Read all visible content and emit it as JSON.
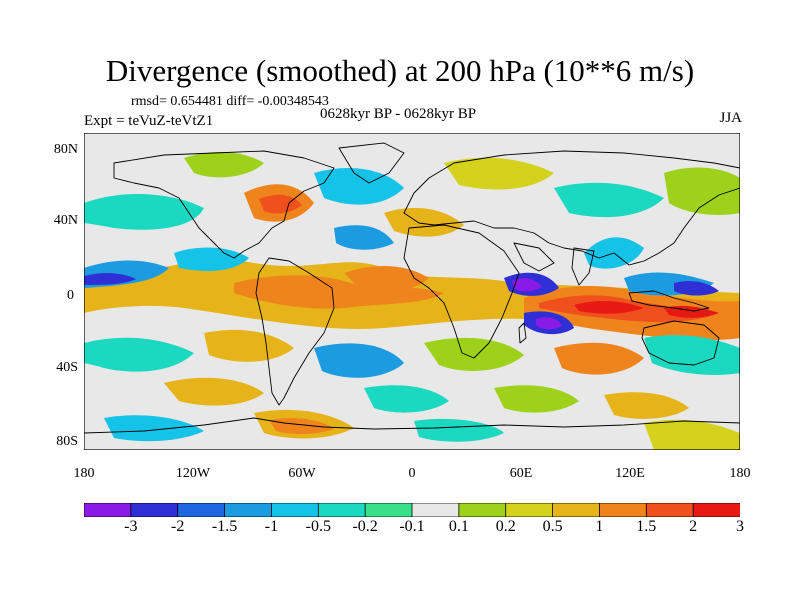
{
  "title": "Divergence (smoothed) at 200 hPa (10**6 m/s)",
  "stats_line": "rmsd= 0.654481 diff= -0.00348543",
  "experiment": "Expt = teVuZ-teVtZ1",
  "period": "0628kyr BP - 0628kyr BP",
  "season": "JJA",
  "lat_labels": [
    "80N",
    "40N",
    "0",
    "40S",
    "80S"
  ],
  "lon_labels": [
    "180",
    "120W",
    "60W",
    "0",
    "60E",
    "120E",
    "180"
  ],
  "colorbar": {
    "levels": [
      "-3",
      "-2",
      "-1.5",
      "-1",
      "-0.5",
      "-0.2",
      "-0.1",
      "0.1",
      "0.2",
      "0.5",
      "1",
      "1.5",
      "2",
      "3"
    ],
    "colors": [
      "#8a1ae6",
      "#2f2fd6",
      "#1f67e0",
      "#1c9be0",
      "#15c3e8",
      "#1bd8c0",
      "#39e08a",
      "#e8e8e8",
      "#9ed21a",
      "#d4d21c",
      "#e6b318",
      "#f0841c",
      "#f0501c",
      "#e61a12"
    ]
  },
  "map_colors": {
    "ocean_background": "#e8e8e8",
    "coastline": "#000000"
  }
}
